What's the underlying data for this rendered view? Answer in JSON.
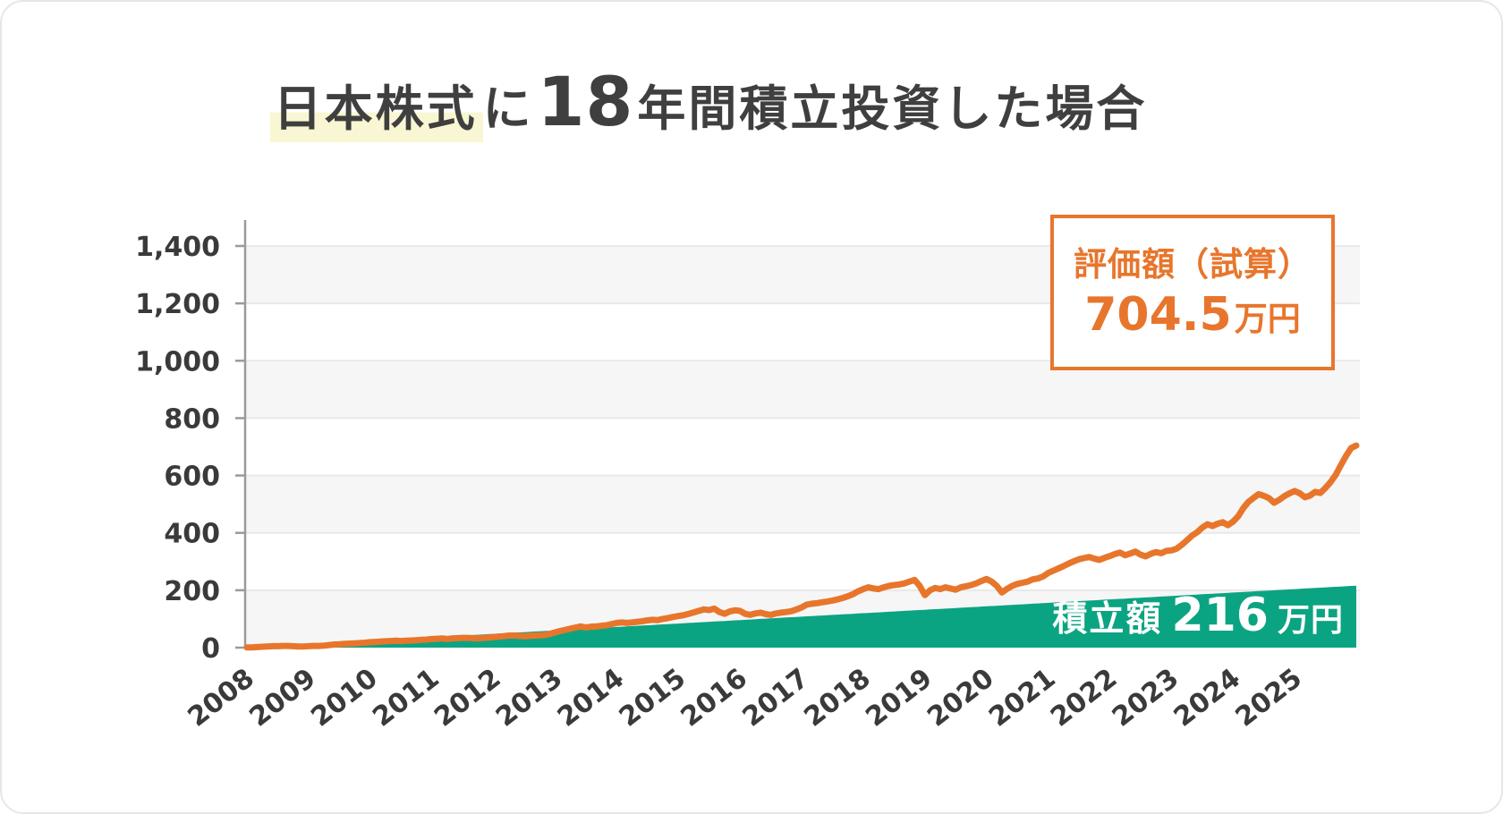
{
  "title": {
    "highlight": "日本株式",
    "particle": "に",
    "years_num": "18",
    "suffix": "年間積立投資した場合",
    "full": "日本株式に18年間積立投資した場合"
  },
  "annotation_box": {
    "label": "評価額（試算）",
    "value": "704.5",
    "unit": "万円"
  },
  "area_label": {
    "label": "積立額",
    "value": "216",
    "unit": "万円"
  },
  "colors": {
    "line": "#e7762c",
    "area": "#0ba482",
    "band": "#f6f6f6",
    "grid": "#e9e9e9",
    "axis": "#9a9a9a",
    "tick_text": "#3a3a3a",
    "title_text": "#3f3f3f",
    "highlight": "#f9f7d3",
    "area_label_text": "#ffffff"
  },
  "chart_data": {
    "type": "line",
    "title": "日本株式に18年間積立投資した場合",
    "xlabel": "",
    "ylabel": "万円",
    "ylim": [
      0,
      1490
    ],
    "grid": "horizontal-bands",
    "legend_position": "annotation-box-top-right",
    "x_months": 216,
    "x_tick_labels": [
      "2008",
      "2009",
      "2010",
      "2011",
      "2012",
      "2013",
      "2014",
      "2015",
      "2016",
      "2017",
      "2018",
      "2019",
      "2020",
      "2021",
      "2022",
      "2023",
      "2024",
      "2025"
    ],
    "y_ticks": [
      0,
      200,
      400,
      600,
      800,
      1000,
      1200,
      1400
    ],
    "y_tick_labels": [
      "0",
      "200",
      "400",
      "600",
      "800",
      "1,000",
      "1,200",
      "1,400"
    ],
    "grid_bands": [
      [
        1200,
        1400
      ],
      [
        800,
        1000
      ],
      [
        400,
        600
      ],
      [
        0,
        200
      ]
    ],
    "series": [
      {
        "name": "評価額（試算）",
        "type": "line",
        "color": "#e7762c",
        "final_value": 704.5,
        "values": [
          1,
          2,
          3,
          4,
          5,
          5,
          6,
          6,
          5,
          4,
          4,
          5,
          6,
          6,
          7,
          9,
          11,
          12,
          13,
          14,
          15,
          16,
          17,
          19,
          20,
          21,
          22,
          23,
          24,
          23,
          24,
          25,
          26,
          27,
          28,
          30,
          31,
          32,
          30,
          32,
          33,
          34,
          34,
          33,
          32,
          34,
          35,
          37,
          38,
          40,
          42,
          42,
          41,
          40,
          41,
          42,
          43,
          44,
          48,
          53,
          58,
          62,
          66,
          70,
          74,
          70,
          73,
          74,
          76,
          78,
          82,
          86,
          88,
          86,
          88,
          90,
          92,
          95,
          97,
          96,
          100,
          103,
          107,
          110,
          113,
          118,
          123,
          128,
          133,
          131,
          136,
          124,
          118,
          126,
          130,
          128,
          118,
          114,
          119,
          122,
          117,
          114,
          119,
          122,
          124,
          127,
          133,
          140,
          150,
          153,
          155,
          158,
          161,
          164,
          168,
          173,
          179,
          186,
          196,
          204,
          210,
          206,
          204,
          210,
          215,
          218,
          220,
          224,
          230,
          236,
          215,
          183,
          200,
          208,
          204,
          210,
          206,
          202,
          210,
          214,
          218,
          224,
          232,
          239,
          230,
          215,
          192,
          205,
          215,
          222,
          226,
          230,
          238,
          241,
          248,
          260,
          268,
          276,
          284,
          293,
          301,
          308,
          312,
          316,
          310,
          306,
          313,
          319,
          326,
          331,
          322,
          328,
          335,
          324,
          318,
          327,
          333,
          329,
          337,
          339,
          345,
          358,
          374,
          390,
          402,
          418,
          430,
          424,
          432,
          437,
          427,
          439,
          458,
          486,
          508,
          522,
          535,
          529,
          521,
          505,
          515,
          528,
          538,
          546,
          538,
          524,
          530,
          543,
          539,
          557,
          577,
          602,
          636,
          668,
          696,
          704.5
        ]
      },
      {
        "name": "積立額",
        "type": "area",
        "color": "#0ba482",
        "final_value": 216,
        "values_linear": {
          "from": 1,
          "to": 216
        }
      }
    ]
  }
}
